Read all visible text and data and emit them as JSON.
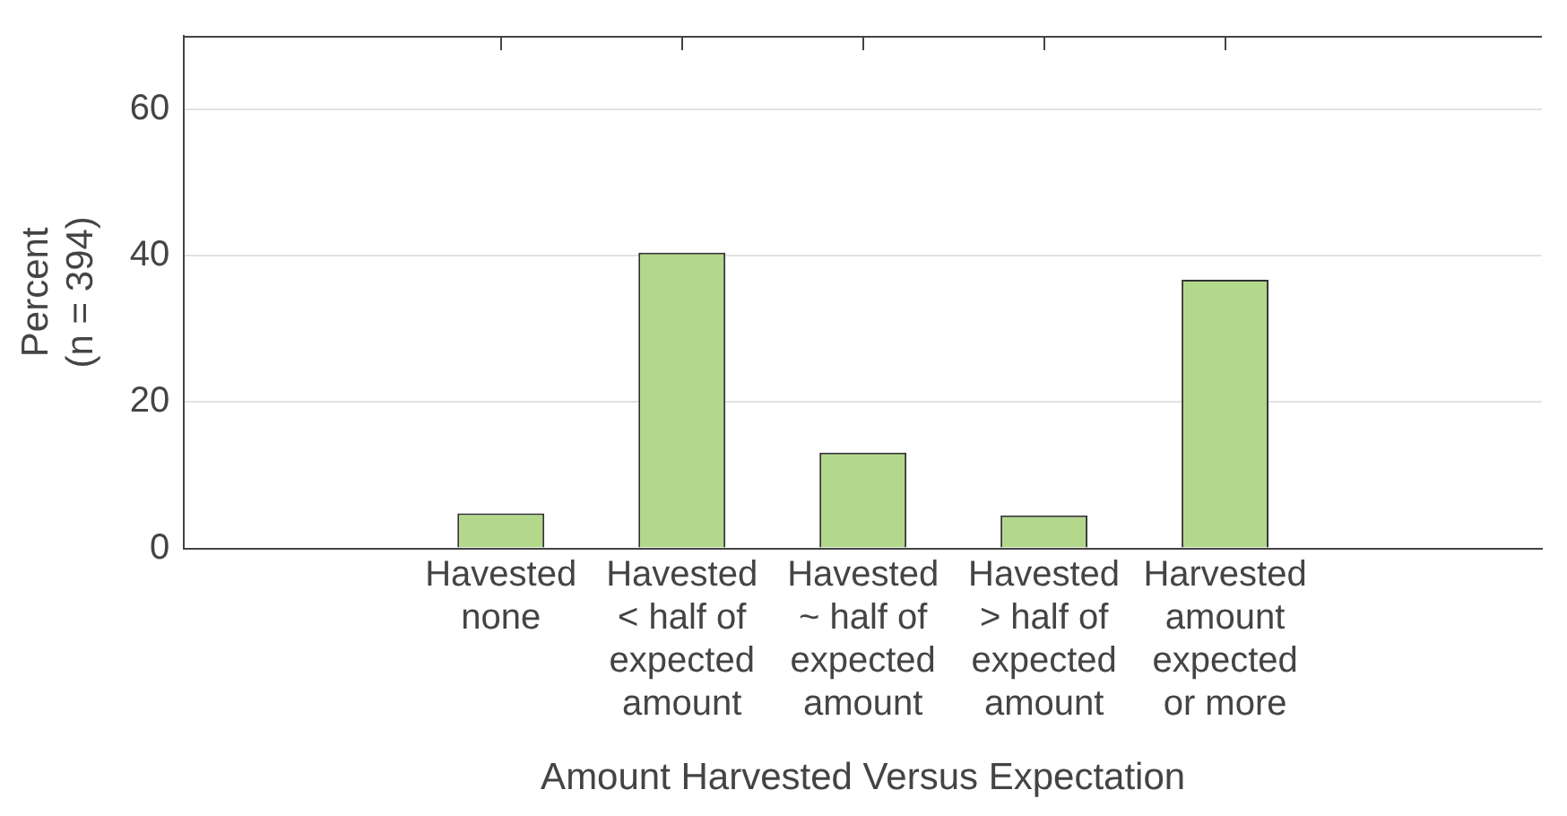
{
  "chart_data": {
    "type": "bar",
    "xlabel": "Amount Harvested Versus Expectation",
    "ylabel": "Percent (n = 394)",
    "categories": [
      "Havested none",
      "Havested < half of expected amount",
      "Havested ~ half of expected amount",
      "Havested > half of expected amount",
      "Harvested amount expected or more"
    ],
    "values": [
      4.8,
      40.4,
      13.1,
      4.5,
      36.7
    ],
    "color": "#b3d88c",
    "ylim": [
      0,
      70
    ],
    "yticks": [
      0,
      20,
      40,
      60
    ],
    "grid": "y",
    "legend": false
  }
}
